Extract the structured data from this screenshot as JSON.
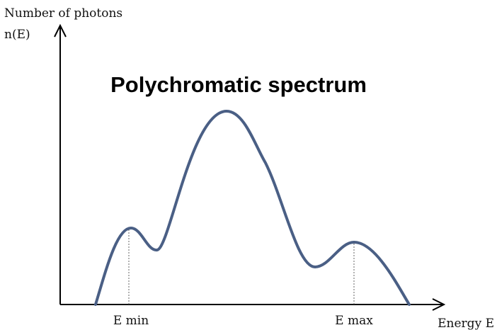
{
  "title": "Polychromatic spectrum",
  "y_axis": {
    "label": "Number of photons",
    "symbol": "n(E)"
  },
  "x_axis": {
    "label": "Energy E"
  },
  "markers": [
    "E min",
    "E max"
  ]
}
